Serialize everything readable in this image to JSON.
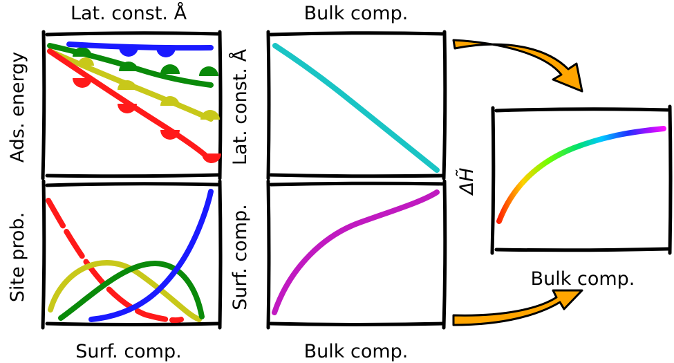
{
  "labels": {
    "top_left": "Lat. const. Å",
    "top_middle": "Bulk comp.",
    "left_top": "Ads. energy",
    "left_bottom": "Site prob.",
    "middle_top_vertical": "Lat. const. Å",
    "middle_bottom_vertical": "Surf. comp.",
    "bottom_left": "Surf. comp.",
    "bottom_middle": "Bulk comp.",
    "right_bottom": "Bulk comp.",
    "right_vertical": "ΔH̃"
  },
  "colors": {
    "red": "#ff1a1a",
    "yellow": "#c8c81a",
    "green": "#0a8a0a",
    "blue": "#1a1aff",
    "cyan": "#1ac4c4",
    "magenta": "#c01ac0",
    "arrow": "#ffa500",
    "frame": "#000000"
  },
  "panels": [
    {
      "id": "adsorption-energy-vs-lattice-constant",
      "series": [
        "red",
        "yellow",
        "green",
        "blue"
      ]
    },
    {
      "id": "lattice-constant-vs-bulk-composition",
      "series": [
        "cyan"
      ]
    },
    {
      "id": "site-probability-vs-surface-composition",
      "series": [
        "red",
        "yellow",
        "green",
        "blue"
      ]
    },
    {
      "id": "surface-composition-vs-bulk-composition",
      "series": [
        "magenta"
      ]
    },
    {
      "id": "enthalpy-vs-bulk-composition",
      "series": [
        "rainbow"
      ]
    }
  ]
}
